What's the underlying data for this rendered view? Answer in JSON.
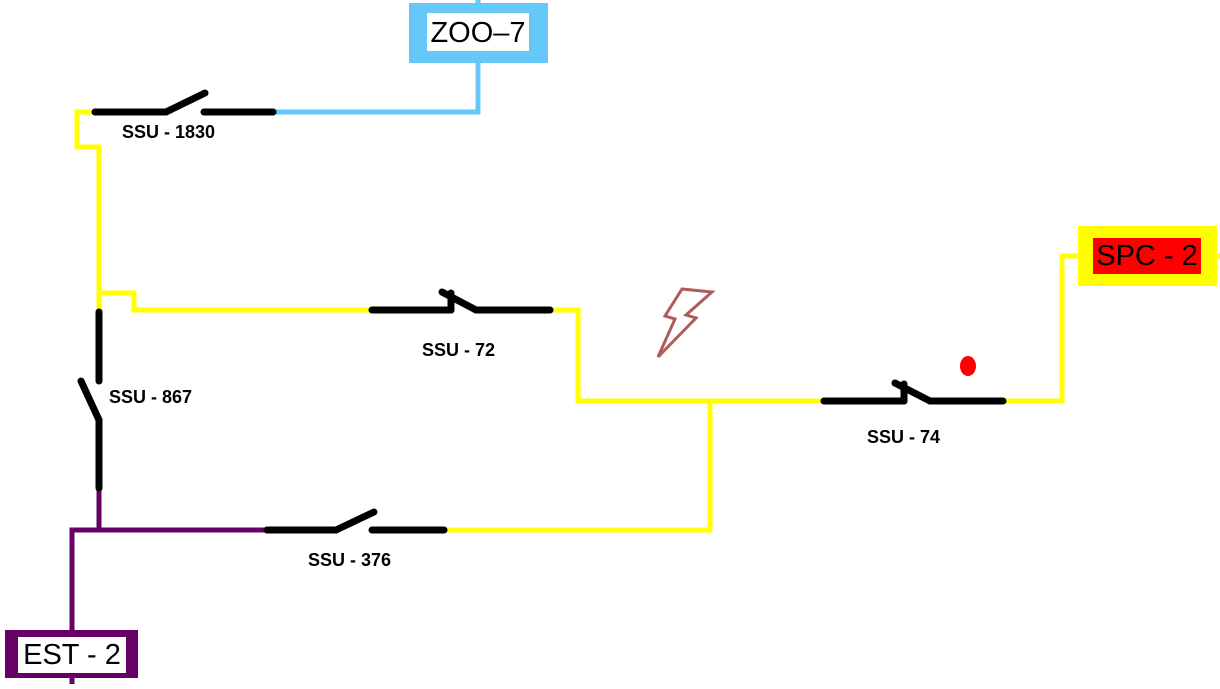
{
  "colors": {
    "zoo_feeder": "#66c8f8",
    "spc_feeder": "#ffff00",
    "est_feeder": "#660066",
    "switch": "#000000",
    "fault_bolt": "#b05a5a",
    "fault_dot": "#ff0000",
    "spc_box_fill": "#ff0000",
    "label_box_fill": "#ffffff"
  },
  "nodes": {
    "zoo": {
      "label": "ZOO–7"
    },
    "spc": {
      "label": "SPC - 2"
    },
    "est": {
      "label": "EST - 2"
    }
  },
  "switches": {
    "ssu_1830": {
      "label": "SSU - 1830",
      "state": "open"
    },
    "ssu_72": {
      "label": "SSU - 72",
      "state": "closed"
    },
    "ssu_867": {
      "label": "SSU - 867",
      "state": "open"
    },
    "ssu_74": {
      "label": "SSU - 74",
      "state": "closed"
    },
    "ssu_376": {
      "label": "SSU - 376",
      "state": "open"
    }
  },
  "icons": {
    "fault": "lightning-bolt-icon",
    "fault_marker": "red-dot-icon"
  }
}
